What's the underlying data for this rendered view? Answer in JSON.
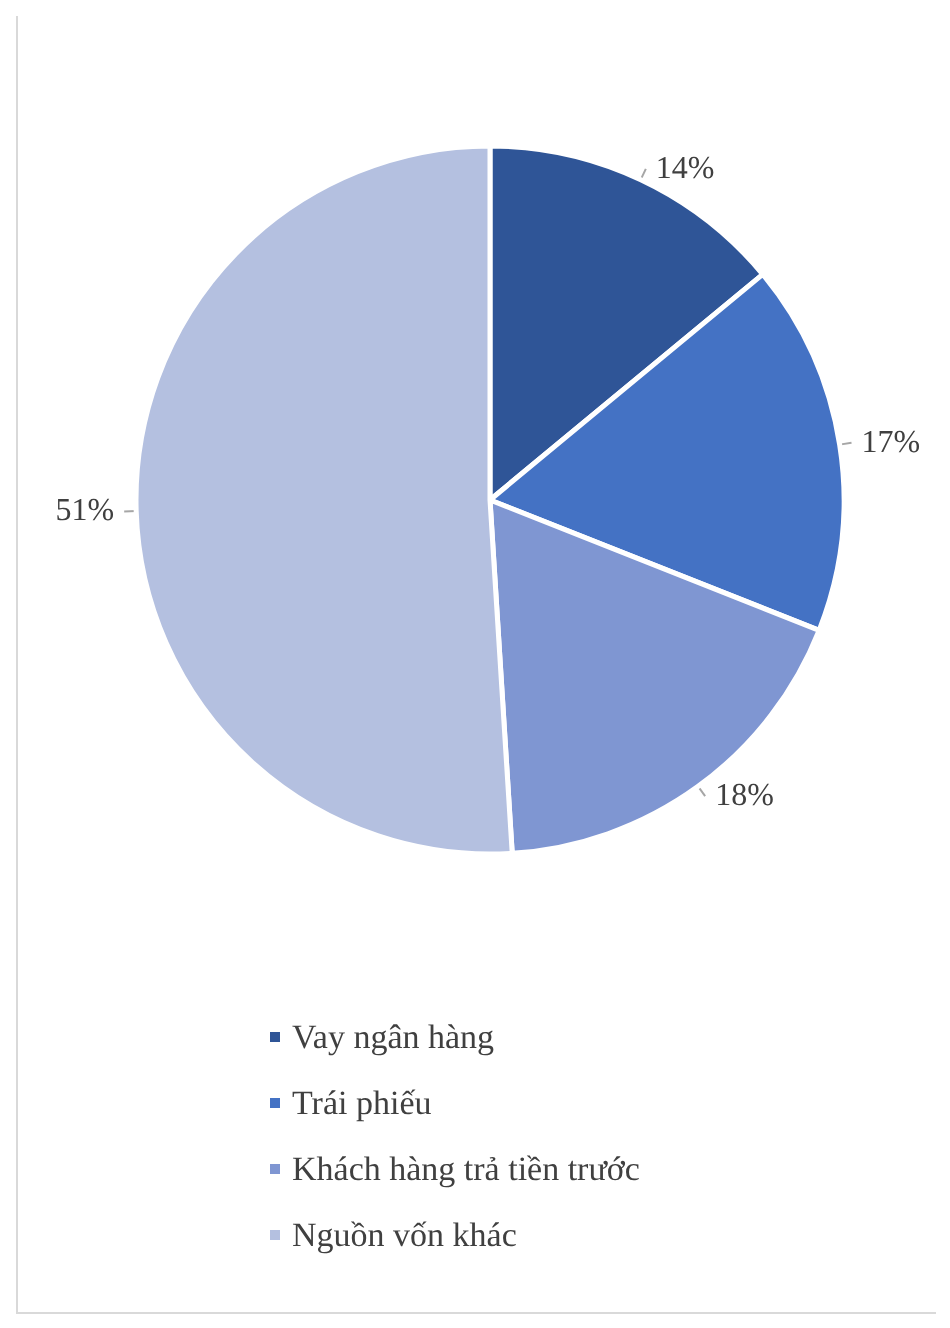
{
  "chart_data": {
    "type": "pie",
    "categories": [
      "Vay ngân hàng",
      "Trái phiếu",
      "Khách hàng trả tiền trước",
      "Nguồn vốn khác"
    ],
    "values": [
      14,
      17,
      18,
      51
    ],
    "colors": [
      "#2f5597",
      "#4472c4",
      "#7f96d2",
      "#b4c0e0"
    ],
    "legend": "bottom",
    "value_labels": [
      "14%",
      "17%",
      "18%",
      "51%"
    ]
  }
}
